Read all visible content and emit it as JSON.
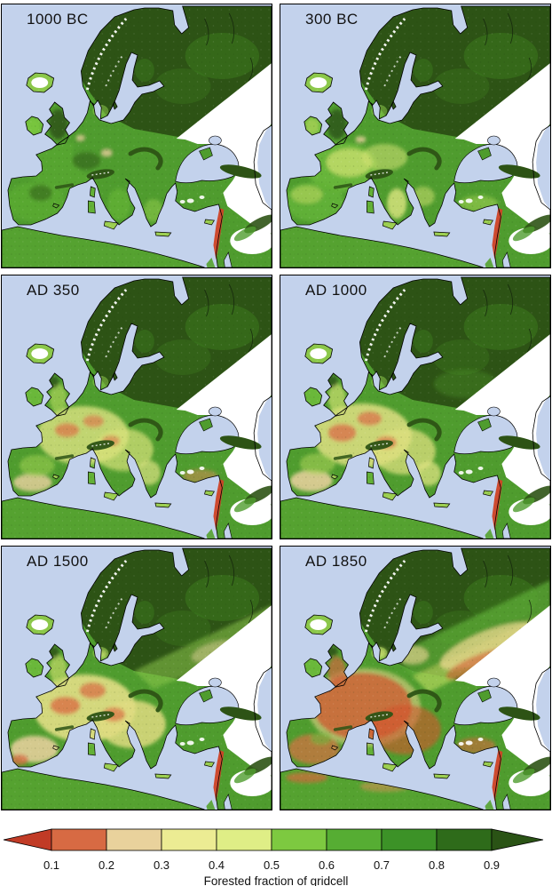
{
  "panels": [
    {
      "label": "1000 BC"
    },
    {
      "label": "300 BC"
    },
    {
      "label": "AD 350"
    },
    {
      "label": "AD 1000"
    },
    {
      "label": "AD 1500"
    },
    {
      "label": "AD 1850"
    }
  ],
  "colorbar": {
    "title": "Forested fraction of gridcell",
    "ticks": [
      "0.1",
      "0.2",
      "0.3",
      "0.4",
      "0.5",
      "0.6",
      "0.7",
      "0.8",
      "0.9"
    ],
    "underflow_color": "#c13b26",
    "overflow_color": "#2a5315",
    "segment_colors": [
      "#d76a43",
      "#e9d29c",
      "#ecec93",
      "#dfee86",
      "#7dc940",
      "#56ad33",
      "#3c9227",
      "#2e6b1a"
    ]
  },
  "map_legend": {
    "sea_color": "#c3d2ec",
    "no_data_color": "#ffffff",
    "coastline_color": "#000000",
    "high_forest_color": "#2d5315",
    "mid_forest_color": "#4f9c2e"
  }
}
